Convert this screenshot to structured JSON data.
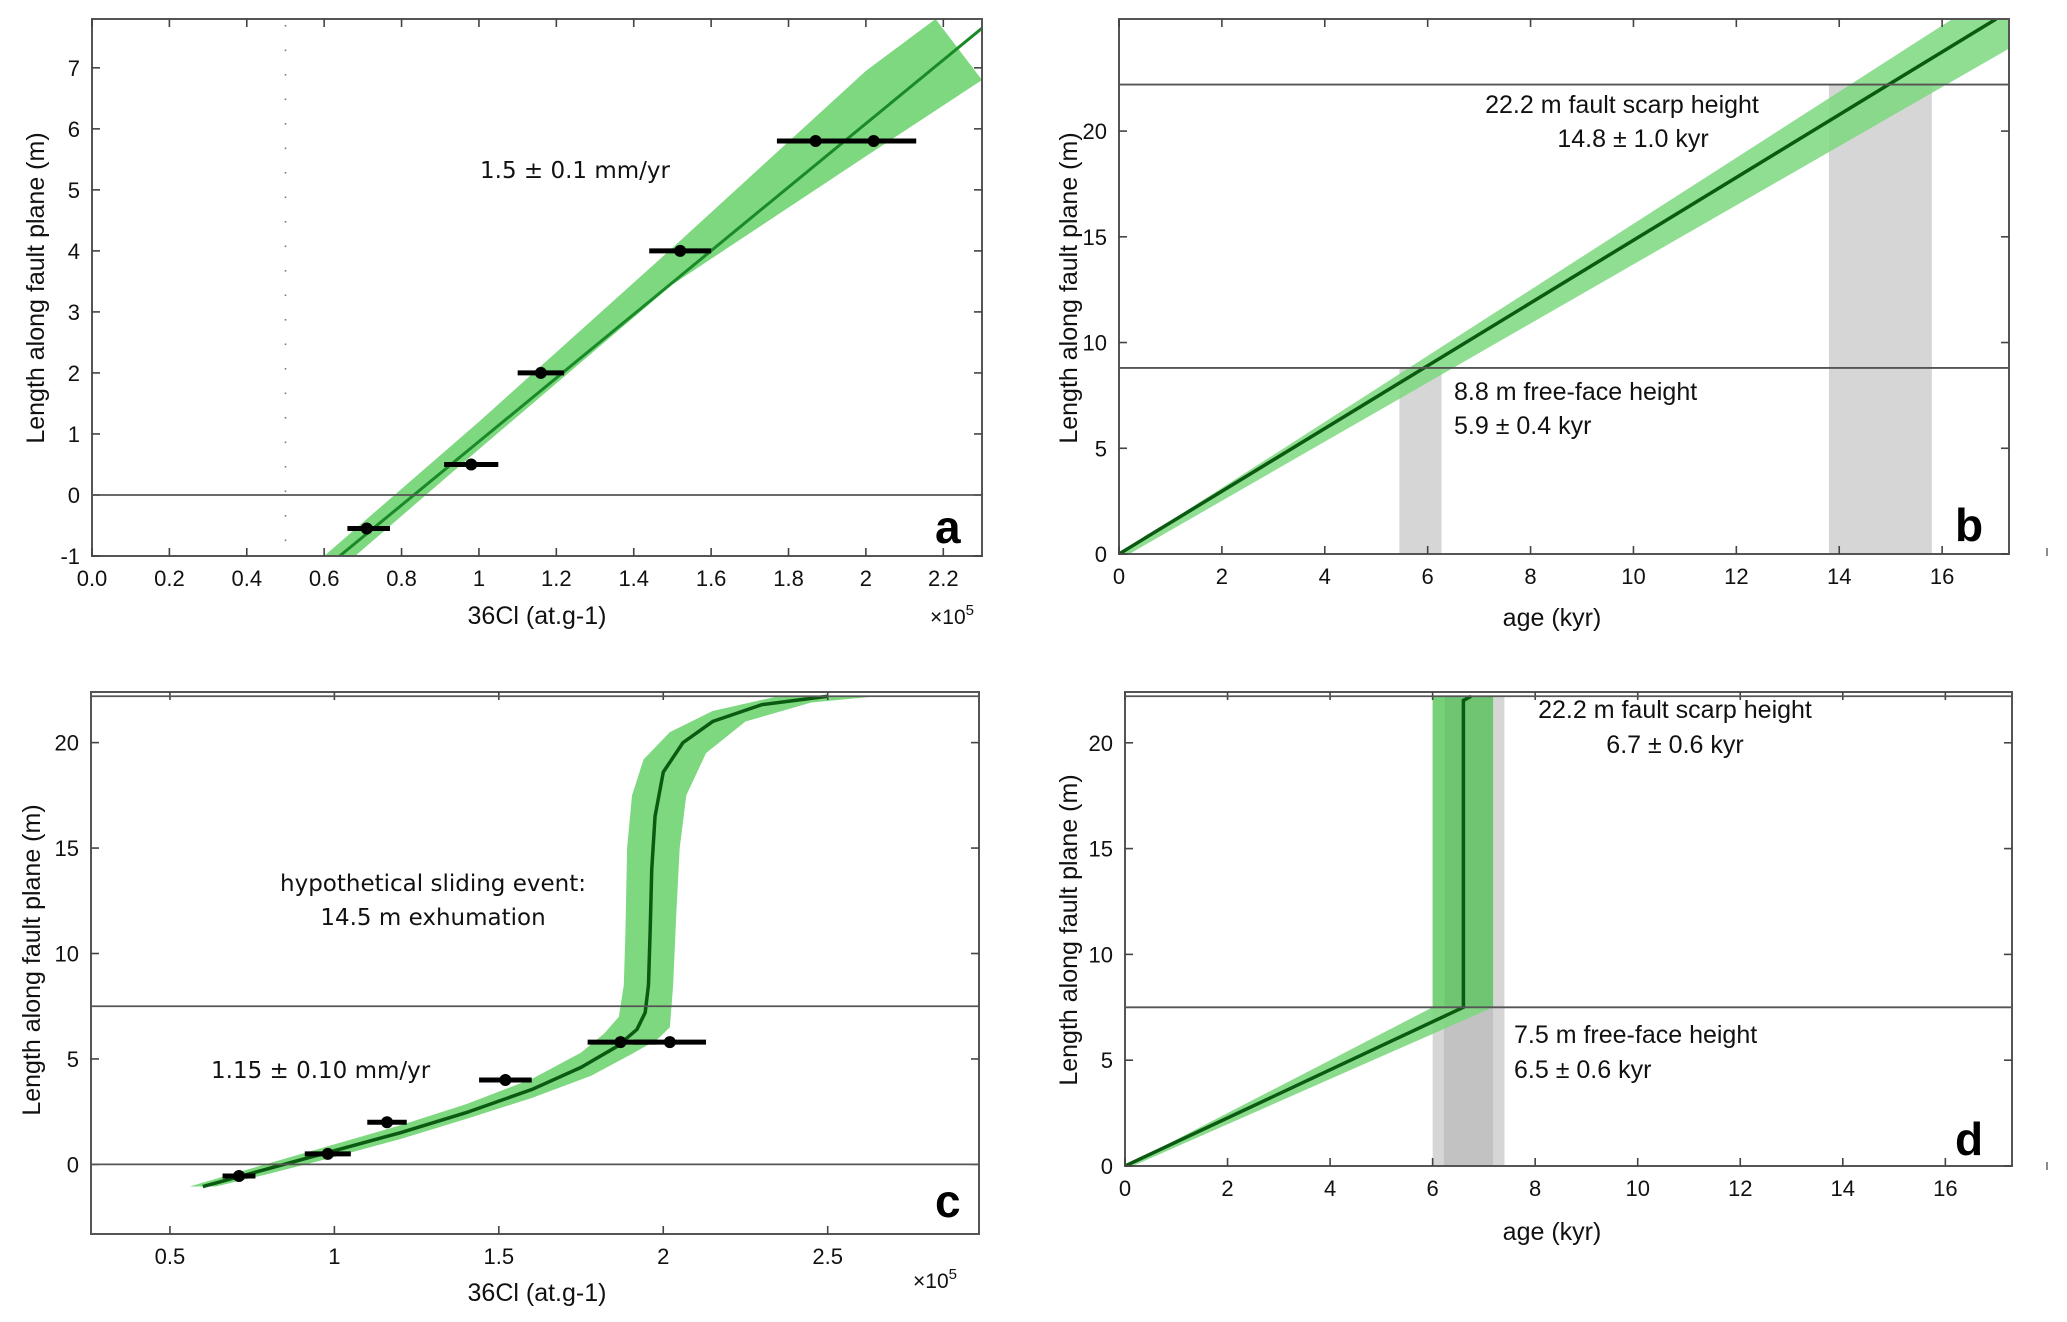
{
  "colors": {
    "band": "#7dd87f",
    "band_dark": "#5fbf63",
    "line_a": "#1a8a28",
    "line_dark": "#0b5a12",
    "gray": "#d6d6d6",
    "gray_dark": "#c2c2c2",
    "axis": "#555555"
  },
  "chart_data": [
    {
      "id": "a",
      "type": "scatter",
      "panel_letter": "a",
      "title": "",
      "xlabel": "36Cl (at.g-1)",
      "ylabel": "Length along fault plane (m)",
      "x_multiplier": "×10",
      "x_multiplier_exp": "5",
      "xlim": [
        0,
        2.3
      ],
      "ylim": [
        -1,
        7.8
      ],
      "xticks": [
        0.0,
        0.2,
        0.4,
        0.6,
        0.8,
        1.0,
        1.2,
        1.4,
        1.6,
        1.8,
        2.0,
        2.2
      ],
      "xtick_labels": [
        "0.0",
        "0.2",
        "0.4",
        "0.6",
        "0.8",
        "1",
        "1.2",
        "1.4",
        "1.6",
        "1.8",
        "2",
        "2.2"
      ],
      "yticks": [
        -1,
        0,
        1,
        2,
        3,
        4,
        5,
        6,
        7
      ],
      "ytick_labels": [
        "-1",
        "0",
        "1",
        "2",
        "3",
        "4",
        "5",
        "6",
        "7"
      ],
      "hlines": [
        0
      ],
      "dotted_vline": 0.5,
      "annotation": "1.5 ± 0.1 mm/yr",
      "points": [
        {
          "x": 0.71,
          "y": -0.55,
          "xmin": 0.66,
          "xmax": 0.77
        },
        {
          "x": 0.98,
          "y": 0.5,
          "xmin": 0.91,
          "xmax": 1.05
        },
        {
          "x": 1.16,
          "y": 2.0,
          "xmin": 1.1,
          "xmax": 1.22
        },
        {
          "x": 1.52,
          "y": 4.0,
          "xmin": 1.44,
          "xmax": 1.6
        },
        {
          "x": 1.87,
          "y": 5.8,
          "xmin": 1.77,
          "xmax": 1.98
        },
        {
          "x": 2.02,
          "y": 5.8,
          "xmin": 1.91,
          "xmax": 2.13
        }
      ],
      "model_line": [
        [
          0.64,
          -1
        ],
        [
          2.3,
          7.65
        ]
      ],
      "model_band": {
        "upper": [
          [
            0.6,
            -1
          ],
          [
            1.0,
            1.2
          ],
          [
            1.5,
            4.05
          ],
          [
            2.0,
            6.95
          ],
          [
            2.18,
            7.8
          ]
        ],
        "lower": [
          [
            0.68,
            -1
          ],
          [
            1.0,
            0.75
          ],
          [
            1.5,
            3.45
          ],
          [
            2.0,
            5.55
          ],
          [
            2.3,
            6.8
          ]
        ]
      }
    },
    {
      "id": "b",
      "type": "line",
      "panel_letter": "b",
      "xlabel": "age (kyr)",
      "ylabel": "Length along fault plane (m)",
      "xlim": [
        0,
        17.3
      ],
      "ylim": [
        0,
        25.3
      ],
      "xticks": [
        0,
        2,
        4,
        6,
        8,
        10,
        12,
        14,
        16
      ],
      "xtick_labels": [
        "0",
        "2",
        "4",
        "6",
        "8",
        "10",
        "12",
        "14",
        "16"
      ],
      "yticks": [
        0,
        5,
        10,
        15,
        20
      ],
      "ytick_labels": [
        "0",
        "5",
        "10",
        "15",
        "20"
      ],
      "hlines": [
        22.2,
        8.8
      ],
      "gray_bands": [
        {
          "x0": 5.45,
          "x1": 6.27,
          "y1": 8.8
        },
        {
          "x0": 13.8,
          "x1": 15.8,
          "y1": 22.2
        }
      ],
      "model_line": [
        [
          0,
          0
        ],
        [
          17.05,
          25.3
        ]
      ],
      "model_band": {
        "upper": [
          [
            0,
            0
          ],
          [
            16.2,
            25.3
          ],
          [
            17.3,
            25.3
          ]
        ],
        "lower": [
          [
            0.2,
            0
          ],
          [
            17.3,
            23.9
          ]
        ]
      },
      "annotations": [
        {
          "lines": [
            "22.2 m fault scarp height",
            "14.8 ± 1.0 kyr"
          ],
          "align": "center"
        },
        {
          "lines": [
            "8.8 m free-face height",
            "5.9 ± 0.4 kyr"
          ],
          "align": "left"
        }
      ]
    },
    {
      "id": "c",
      "type": "scatter",
      "panel_letter": "c",
      "xlabel": "36Cl (at.g-1)",
      "ylabel": "Length along fault plane (m)",
      "x_multiplier": "×10",
      "x_multiplier_exp": "5",
      "xlim": [
        0.26,
        2.96
      ],
      "ylim": [
        -3.3,
        22.4
      ],
      "xticks": [
        0.5,
        1.0,
        1.5,
        2.0,
        2.5
      ],
      "xtick_labels": [
        "0.5",
        "1",
        "1.5",
        "2",
        "2.5"
      ],
      "yticks": [
        0,
        5,
        10,
        15,
        20
      ],
      "ytick_labels": [
        "0",
        "5",
        "10",
        "15",
        "20"
      ],
      "hlines": [
        0,
        7.5,
        22.2
      ],
      "annotations": [
        {
          "lines": [
            "hypothetical sliding event:",
            "14.5 m exhumation"
          ],
          "align": "center"
        },
        {
          "lines": [
            "1.15 ± 0.10 mm/yr"
          ],
          "align": "left"
        }
      ],
      "points": [
        {
          "x": 0.71,
          "y": -0.55,
          "xmin": 0.66,
          "xmax": 0.76
        },
        {
          "x": 0.98,
          "y": 0.5,
          "xmin": 0.91,
          "xmax": 1.05
        },
        {
          "x": 1.16,
          "y": 2.0,
          "xmin": 1.1,
          "xmax": 1.22
        },
        {
          "x": 1.52,
          "y": 4.0,
          "xmin": 1.44,
          "xmax": 1.6
        },
        {
          "x": 1.87,
          "y": 5.8,
          "xmin": 1.77,
          "xmax": 1.98
        },
        {
          "x": 2.02,
          "y": 5.8,
          "xmin": 1.91,
          "xmax": 2.13
        }
      ],
      "model_line": [
        [
          0.6,
          -1.05
        ],
        [
          0.8,
          -0.2
        ],
        [
          1.0,
          0.65
        ],
        [
          1.2,
          1.5
        ],
        [
          1.4,
          2.45
        ],
        [
          1.6,
          3.55
        ],
        [
          1.75,
          4.6
        ],
        [
          1.86,
          5.6
        ],
        [
          1.92,
          6.4
        ],
        [
          1.945,
          7.2
        ],
        [
          1.955,
          8.5
        ],
        [
          1.96,
          11
        ],
        [
          1.965,
          14
        ],
        [
          1.975,
          16.5
        ],
        [
          2.0,
          18.6
        ],
        [
          2.06,
          20.0
        ],
        [
          2.15,
          21.0
        ],
        [
          2.3,
          21.8
        ],
        [
          2.5,
          22.2
        ]
      ],
      "model_band": {
        "upper": [
          [
            0.56,
            -1.05
          ],
          [
            0.8,
            0.05
          ],
          [
            1.0,
            0.95
          ],
          [
            1.2,
            1.85
          ],
          [
            1.4,
            2.85
          ],
          [
            1.6,
            4.05
          ],
          [
            1.75,
            5.3
          ],
          [
            1.82,
            6.2
          ],
          [
            1.865,
            7.0
          ],
          [
            1.88,
            8.5
          ],
          [
            1.885,
            11
          ],
          [
            1.89,
            15
          ],
          [
            1.905,
            17.5
          ],
          [
            1.94,
            19.2
          ],
          [
            2.02,
            20.5
          ],
          [
            2.15,
            21.5
          ],
          [
            2.35,
            22.2
          ]
        ],
        "lower": [
          [
            0.64,
            -1.05
          ],
          [
            0.8,
            -0.45
          ],
          [
            1.0,
            0.35
          ],
          [
            1.2,
            1.2
          ],
          [
            1.4,
            2.15
          ],
          [
            1.6,
            3.15
          ],
          [
            1.78,
            4.2
          ],
          [
            1.9,
            5.2
          ],
          [
            1.98,
            5.9
          ],
          [
            2.02,
            6.5
          ],
          [
            2.03,
            8.5
          ],
          [
            2.04,
            12
          ],
          [
            2.05,
            15
          ],
          [
            2.07,
            17.5
          ],
          [
            2.13,
            19.5
          ],
          [
            2.25,
            21.0
          ],
          [
            2.45,
            21.9
          ],
          [
            2.65,
            22.2
          ]
        ]
      }
    },
    {
      "id": "d",
      "type": "line",
      "panel_letter": "d",
      "xlabel": "age (kyr)",
      "ylabel": "Length along fault plane (m)",
      "xlim": [
        0,
        17.3
      ],
      "ylim": [
        0,
        22.4
      ],
      "xticks": [
        0,
        2,
        4,
        6,
        8,
        10,
        12,
        14,
        16
      ],
      "xtick_labels": [
        "0",
        "2",
        "4",
        "6",
        "8",
        "10",
        "12",
        "14",
        "16"
      ],
      "yticks": [
        0,
        5,
        10,
        15,
        20
      ],
      "ytick_labels": [
        "0",
        "5",
        "10",
        "15",
        "20"
      ],
      "hlines": [
        7.5,
        22.2
      ],
      "gray_bands": [
        {
          "x0": 6.0,
          "x1": 7.4,
          "y1": 7.5,
          "shade": "light"
        },
        {
          "x0": 6.22,
          "x1": 7.18,
          "y1": 7.5,
          "shade": "dark"
        },
        {
          "x0": 7.18,
          "x1": 7.4,
          "y1": 22.2,
          "shade": "light"
        }
      ],
      "model_line": [
        [
          0,
          0
        ],
        [
          6.6,
          7.5
        ],
        [
          6.6,
          22.0
        ],
        [
          6.75,
          22.2
        ]
      ],
      "model_band_low": {
        "upper": [
          [
            0,
            0
          ],
          [
            6.0,
            7.5
          ]
        ],
        "lower": [
          [
            0.15,
            0
          ],
          [
            7.18,
            7.5
          ]
        ]
      },
      "model_band_high": {
        "x0": 6.0,
        "x1": 7.18,
        "y0": 7.5,
        "y1": 22.2
      },
      "annotations": [
        {
          "lines": [
            "22.2 m fault scarp height",
            "6.7 ± 0.6 kyr"
          ],
          "align": "center"
        },
        {
          "lines": [
            "7.5 m free-face height",
            "6.5 ± 0.6 kyr"
          ],
          "align": "left"
        }
      ]
    }
  ]
}
